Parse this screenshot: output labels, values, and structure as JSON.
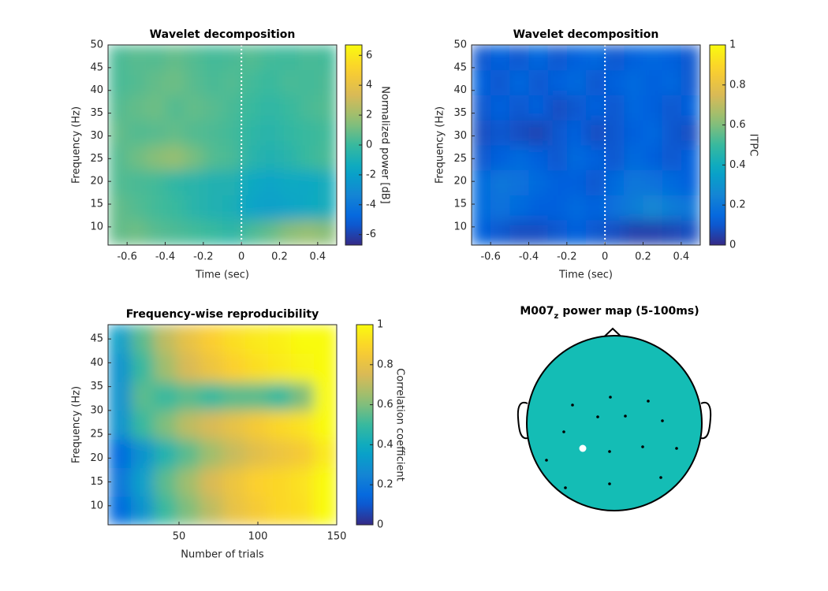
{
  "chart_data": [
    {
      "type": "heatmap",
      "title": "Wavelet decomposition",
      "xlabel": "Time (sec)",
      "ylabel": "Frequency (Hz)",
      "colorbar_label": "Normalized power [dB]",
      "colormap": "parula",
      "x": [
        -0.65,
        -0.55,
        -0.45,
        -0.35,
        -0.25,
        -0.15,
        -0.05,
        0.05,
        0.15,
        0.25,
        0.35,
        0.45
      ],
      "y": [
        8.75,
        14.25,
        19.75,
        25.25,
        30.75,
        36.25,
        41.75,
        47.25
      ],
      "z": [
        [
          0.8,
          1.0,
          0.6,
          0.4,
          0.2,
          0,
          -0.3,
          0.3,
          0.8,
          1.5,
          1.8,
          1.5
        ],
        [
          0.8,
          0.5,
          0.2,
          0,
          -0.5,
          -0.8,
          -1.0,
          -1.8,
          -2.0,
          -1.8,
          -1.5,
          -1.2
        ],
        [
          0.5,
          0.3,
          0.2,
          -0.3,
          -0.5,
          -0.8,
          -0.8,
          -1.5,
          -1.8,
          -1.5,
          -1.6,
          -1.2
        ],
        [
          0.5,
          1.0,
          1.5,
          1.8,
          1.2,
          0.5,
          0.3,
          -0.5,
          -0.8,
          -0.5,
          0,
          0.3
        ],
        [
          0.8,
          0.5,
          0.6,
          0.8,
          0.5,
          0.4,
          0.2,
          -0.3,
          -0.5,
          -0.2,
          0,
          0.2
        ],
        [
          0.5,
          0.8,
          1.0,
          0.5,
          0.8,
          0.6,
          0.3,
          0,
          -0.3,
          0,
          0.3,
          0.5
        ],
        [
          0.3,
          0.5,
          0.8,
          1.0,
          0.6,
          0.3,
          0.5,
          0.2,
          0,
          0.3,
          0.2,
          0.4
        ],
        [
          0.3,
          0.6,
          0.5,
          0.8,
          0.5,
          0.2,
          0.3,
          0.5,
          0.2,
          0.1,
          0.3,
          0.2
        ]
      ],
      "xlim": [
        -0.7,
        0.5
      ],
      "xticks": [
        -0.6,
        -0.4,
        -0.2,
        0,
        0.2,
        0.4
      ],
      "ylim": [
        6,
        50
      ],
      "yticks": [
        10,
        15,
        20,
        25,
        30,
        35,
        40,
        45,
        50
      ],
      "clim": [
        -6.7,
        6.7
      ],
      "cticks": [
        -6,
        -4,
        -2,
        0,
        2,
        4,
        6
      ],
      "vline": 0
    },
    {
      "type": "heatmap",
      "title": "Wavelet decomposition",
      "xlabel": "Time (sec)",
      "ylabel": "Frequency (Hz)",
      "colorbar_label": "ITPC",
      "colormap": "parula",
      "x": [
        -0.65,
        -0.55,
        -0.45,
        -0.35,
        -0.25,
        -0.15,
        -0.05,
        0.05,
        0.15,
        0.25,
        0.35,
        0.45
      ],
      "y": [
        8.75,
        14.25,
        19.75,
        25.25,
        30.75,
        36.25,
        41.75,
        47.25
      ],
      "z": [
        [
          0.12,
          0.1,
          0.08,
          0.08,
          0.1,
          0.12,
          0.1,
          0.08,
          0.05,
          0.05,
          0.06,
          0.08
        ],
        [
          0.15,
          0.18,
          0.15,
          0.12,
          0.12,
          0.15,
          0.12,
          0.18,
          0.22,
          0.26,
          0.22,
          0.2
        ],
        [
          0.15,
          0.2,
          0.18,
          0.15,
          0.12,
          0.12,
          0.1,
          0.15,
          0.2,
          0.18,
          0.15,
          0.12
        ],
        [
          0.1,
          0.12,
          0.15,
          0.12,
          0.1,
          0.15,
          0.12,
          0.1,
          0.15,
          0.12,
          0.1,
          0.12
        ],
        [
          0.08,
          0.1,
          0.08,
          0.06,
          0.1,
          0.12,
          0.08,
          0.1,
          0.12,
          0.14,
          0.1,
          0.08
        ],
        [
          0.1,
          0.12,
          0.1,
          0.12,
          0.08,
          0.1,
          0.12,
          0.1,
          0.14,
          0.12,
          0.1,
          0.12
        ],
        [
          0.12,
          0.1,
          0.14,
          0.1,
          0.12,
          0.15,
          0.1,
          0.12,
          0.15,
          0.12,
          0.14,
          0.1
        ],
        [
          0.1,
          0.12,
          0.1,
          0.14,
          0.1,
          0.12,
          0.14,
          0.1,
          0.12,
          0.14,
          0.12,
          0.1
        ]
      ],
      "xlim": [
        -0.7,
        0.5
      ],
      "xticks": [
        -0.6,
        -0.4,
        -0.2,
        0,
        0.2,
        0.4
      ],
      "ylim": [
        6,
        50
      ],
      "yticks": [
        10,
        15,
        20,
        25,
        30,
        35,
        40,
        45,
        50
      ],
      "clim": [
        0,
        1
      ],
      "cticks": [
        0,
        0.2,
        0.4,
        0.6,
        0.8,
        1
      ],
      "vline": 0
    },
    {
      "type": "heatmap",
      "title": "Frequency-wise reproducibility",
      "xlabel": "Number of trials",
      "ylabel": "Frequency (Hz)",
      "colorbar_label": "Correlation coefficient",
      "colormap": "parula",
      "x": [
        12.25,
        26.75,
        41.25,
        55.75,
        70.25,
        84.75,
        99.25,
        113.75,
        128.25,
        142.75
      ],
      "y": [
        9,
        15,
        21,
        27,
        33,
        39,
        45
      ],
      "z": [
        [
          0.15,
          0.3,
          0.5,
          0.6,
          0.7,
          0.8,
          0.85,
          0.9,
          0.92,
          1
        ],
        [
          0.2,
          0.35,
          0.55,
          0.65,
          0.75,
          0.82,
          0.88,
          0.9,
          0.93,
          1
        ],
        [
          0.15,
          0.3,
          0.45,
          0.55,
          0.65,
          0.72,
          0.78,
          0.82,
          0.85,
          0.95
        ],
        [
          0.3,
          0.5,
          0.6,
          0.7,
          0.75,
          0.8,
          0.85,
          0.9,
          0.93,
          1
        ],
        [
          0.3,
          0.55,
          0.5,
          0.55,
          0.5,
          0.55,
          0.55,
          0.5,
          0.6,
          1
        ],
        [
          0.3,
          0.5,
          0.65,
          0.75,
          0.82,
          0.88,
          0.92,
          0.95,
          0.98,
          1
        ],
        [
          0.35,
          0.55,
          0.7,
          0.8,
          0.87,
          0.92,
          0.95,
          0.97,
          1,
          1
        ]
      ],
      "xlim": [
        5,
        150
      ],
      "xticks": [
        50,
        100,
        150
      ],
      "ylim": [
        6,
        48
      ],
      "yticks": [
        10,
        15,
        20,
        25,
        30,
        35,
        40,
        45
      ],
      "clim": [
        0,
        1
      ],
      "cticks": [
        0,
        0.2,
        0.4,
        0.6,
        0.8,
        1
      ]
    },
    {
      "type": "topomap",
      "title": "M007",
      "title_subscript": "z",
      "title_suffix": "power map (5-100ms)"
    }
  ]
}
